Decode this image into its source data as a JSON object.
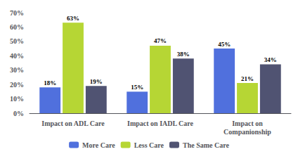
{
  "chart_data": {
    "type": "bar",
    "categories": [
      "Impact on ADL Care",
      "Impact on IADL Care",
      "Impact on\nCompanionship"
    ],
    "series": [
      {
        "name": "More Care",
        "values": [
          18,
          15,
          45
        ],
        "value_labels": [
          "18%",
          "15%",
          "45%"
        ]
      },
      {
        "name": "Less Care",
        "values": [
          63,
          47,
          21
        ],
        "value_labels": [
          "63%",
          "47%",
          "21%"
        ]
      },
      {
        "name": "The Same Care",
        "values": [
          19,
          38,
          34
        ],
        "value_labels": [
          "19%",
          "38%",
          "34%"
        ]
      }
    ],
    "ylim": [
      0,
      70
    ],
    "yticks": [
      {
        "value": 0,
        "label": "0%"
      },
      {
        "value": 10,
        "label": "10%"
      },
      {
        "value": 20,
        "label": "20%"
      },
      {
        "value": 30,
        "label": "30%"
      },
      {
        "value": 40,
        "label": "40%"
      },
      {
        "value": 50,
        "label": "50%"
      },
      {
        "value": 60,
        "label": "60%"
      },
      {
        "value": 70,
        "label": "70%"
      }
    ],
    "grid": false,
    "legend": "bottom",
    "data_labels": true
  }
}
